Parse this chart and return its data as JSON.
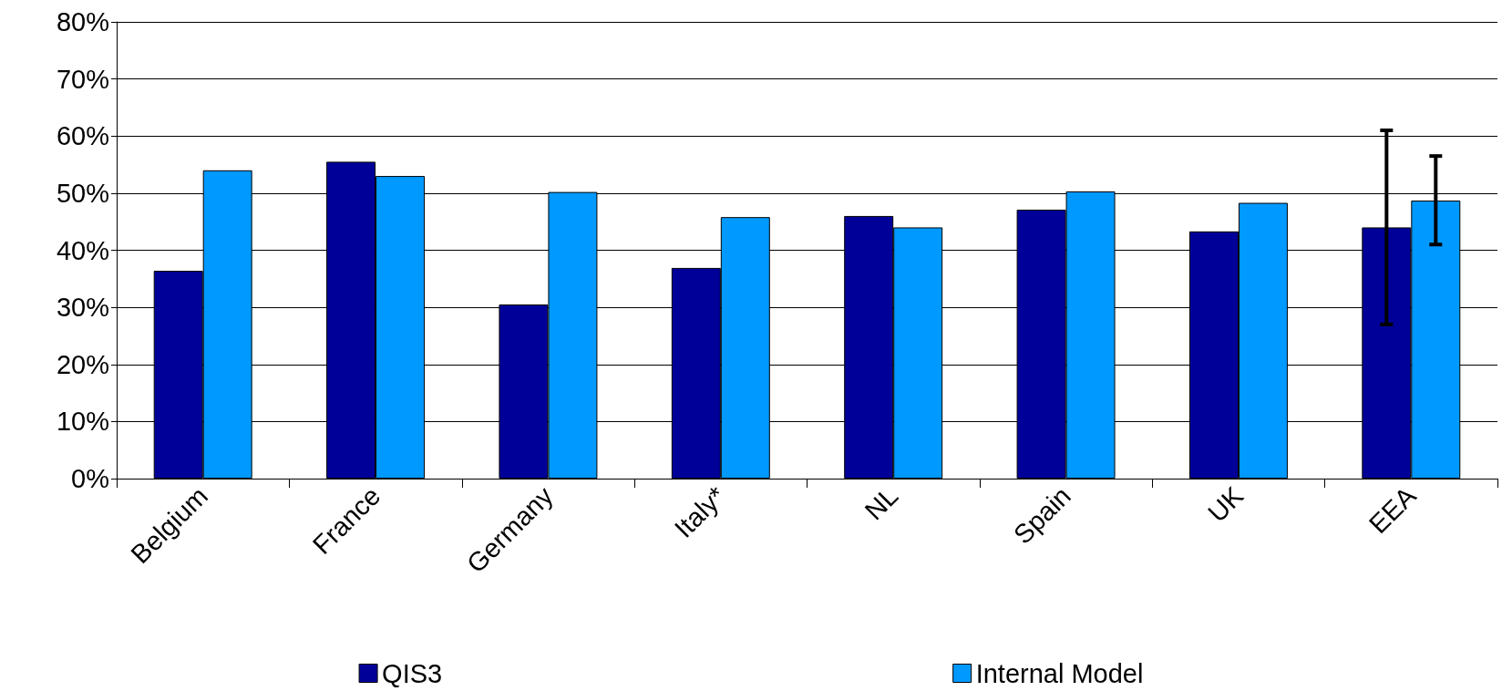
{
  "chart_data": {
    "type": "bar",
    "categories": [
      "Belgium",
      "France",
      "Germany",
      "Italy*",
      "NL",
      "Spain",
      "UK",
      "EEA"
    ],
    "series": [
      {
        "name": "QIS3",
        "color": "#000099",
        "values": [
          36.4,
          55.5,
          30.5,
          36.9,
          46.0,
          47.1,
          43.3,
          44.0
        ],
        "errors": [
          null,
          null,
          null,
          null,
          null,
          null,
          null,
          [
            27,
            61
          ]
        ]
      },
      {
        "name": "Internal Model",
        "color": "#0099ff",
        "values": [
          54.0,
          53.0,
          50.2,
          45.8,
          44.0,
          50.3,
          48.3,
          48.7
        ],
        "errors": [
          null,
          null,
          null,
          null,
          null,
          null,
          null,
          [
            41,
            56.5
          ]
        ]
      }
    ],
    "ylim": [
      0,
      80
    ],
    "yticks": [
      {
        "value": 0,
        "label": "0%"
      },
      {
        "value": 10,
        "label": "10%"
      },
      {
        "value": 20,
        "label": "20%"
      },
      {
        "value": 30,
        "label": "30%"
      },
      {
        "value": 40,
        "label": "40%"
      },
      {
        "value": 50,
        "label": "50%"
      },
      {
        "value": 60,
        "label": "60%"
      },
      {
        "value": 70,
        "label": "70%"
      },
      {
        "value": 80,
        "label": "80%"
      }
    ],
    "grid": "y",
    "legend": "bottom"
  }
}
